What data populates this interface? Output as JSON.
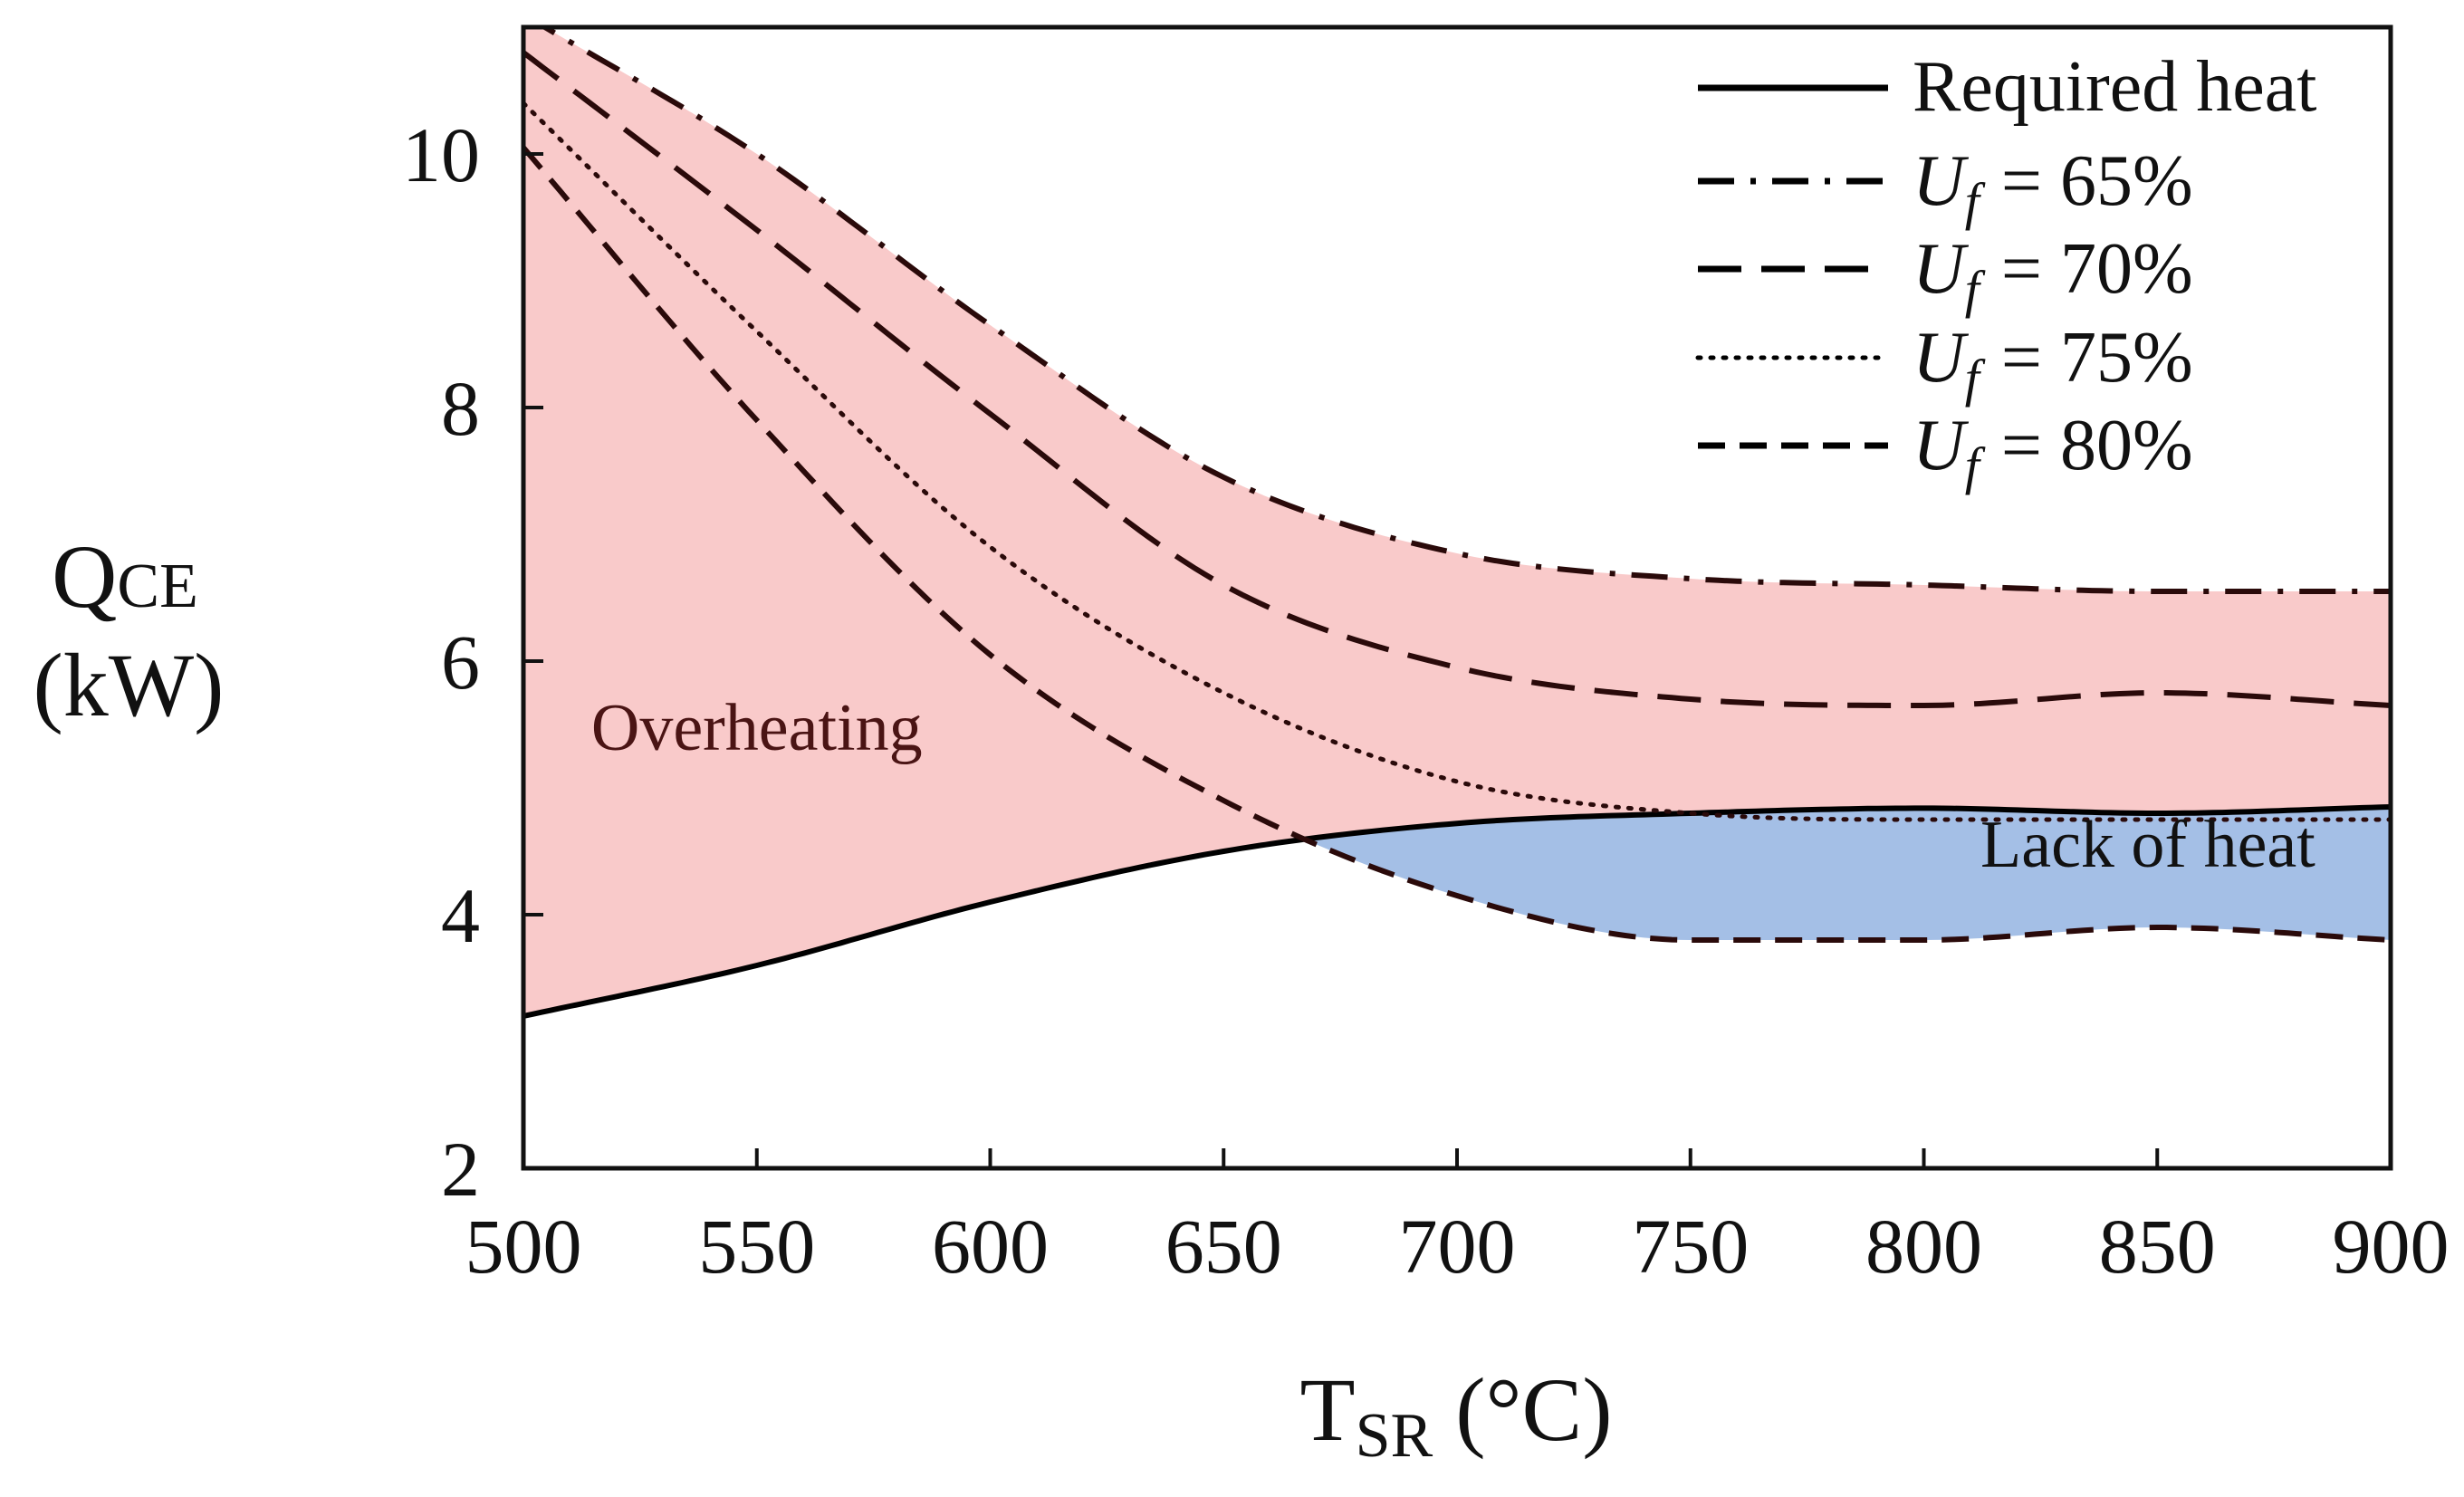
{
  "chart_data": {
    "type": "line",
    "xlabel": {
      "main": "T",
      "sub": "SR",
      "unit": " (°C)"
    },
    "ylabel": {
      "main": "Q",
      "sub": "CE",
      "unit": "(kW)"
    },
    "xlim": [
      500,
      900
    ],
    "ylim": [
      2,
      11
    ],
    "x_ticks": [
      500,
      550,
      600,
      650,
      700,
      750,
      800,
      850,
      900
    ],
    "y_ticks": [
      2,
      4,
      6,
      8,
      10
    ],
    "grid": false,
    "legend_position": "top-right",
    "x": [
      500,
      550,
      600,
      650,
      700,
      750,
      800,
      850,
      900
    ],
    "series": [
      {
        "name": "Required heat",
        "style": "solid",
        "values": [
          3.2,
          3.6,
          4.1,
          4.5,
          4.72,
          4.8,
          4.84,
          4.8,
          4.85
        ]
      },
      {
        "name": "U_f = 65%",
        "legend_symbol": "U",
        "legend_sub": "f",
        "legend_value": "= 65%",
        "style": "dash-dot",
        "values": [
          11.1,
          10.0,
          8.65,
          7.45,
          6.85,
          6.65,
          6.6,
          6.55,
          6.55
        ]
      },
      {
        "name": "U_f = 70%",
        "legend_symbol": "U",
        "legend_sub": "f",
        "legend_value": "= 70%",
        "style": "long-dash",
        "values": [
          10.8,
          9.4,
          7.95,
          6.6,
          5.95,
          5.7,
          5.65,
          5.75,
          5.65
        ]
      },
      {
        "name": "U_f = 75%",
        "legend_symbol": "U",
        "legend_sub": "f",
        "legend_value": "= 75%",
        "style": "dotted",
        "values": [
          10.4,
          8.6,
          6.9,
          5.75,
          5.05,
          4.8,
          4.75,
          4.75,
          4.75
        ]
      },
      {
        "name": "U_f = 80%",
        "legend_symbol": "U",
        "legend_sub": "f",
        "legend_value": "= 80%",
        "style": "dashed",
        "values": [
          10.05,
          7.9,
          6.05,
          4.9,
          4.15,
          3.8,
          3.8,
          3.9,
          3.8
        ]
      }
    ],
    "regions": [
      {
        "label": "Overheating",
        "color": "#f9caca",
        "bounds": "between required heat and U_f = 65%",
        "label_at": [
          550,
          5.3
        ]
      },
      {
        "label": "Lack of heat",
        "color": "#a4bfe6",
        "bounds": "between U_f = 80% and required heat",
        "label_at": [
          848,
          4.38
        ]
      }
    ],
    "colors": {
      "overheating_fill": "#f9caca",
      "lack_fill": "#a4bfe6",
      "curve_stroke": "#2a0a0a",
      "axis": "#111111"
    }
  }
}
